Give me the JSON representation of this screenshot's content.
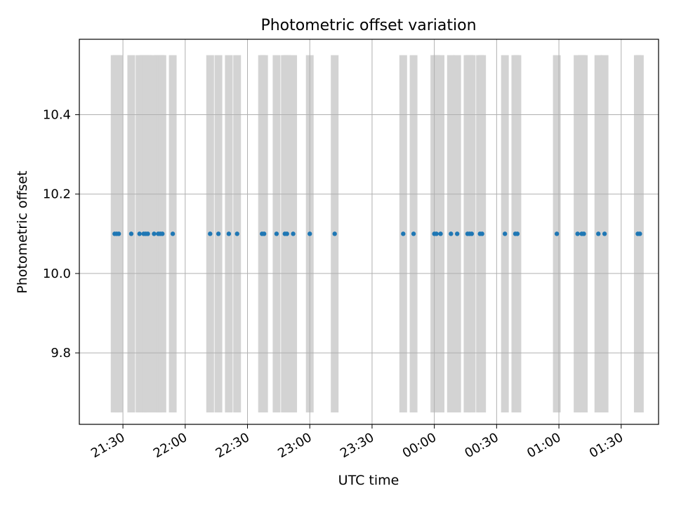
{
  "chart_data": {
    "type": "scatter",
    "title": "Photometric offset variation",
    "xlabel": "UTC time",
    "ylabel": "Photometric offset",
    "x_axis": {
      "kind": "time",
      "min": "21:09",
      "max": "01:48",
      "ticks": [
        "21:30",
        "22:00",
        "22:30",
        "23:00",
        "23:30",
        "00:00",
        "00:30",
        "01:00",
        "01:30"
      ]
    },
    "y_axis": {
      "min": 9.62,
      "max": 10.59,
      "ticks": [
        "9.8",
        "10.0",
        "10.2",
        "10.4"
      ]
    },
    "grid": true,
    "point_color": "#1f77b4",
    "band_color": "#d3d3d3",
    "band_range": [
      9.65,
      10.55
    ],
    "times": [
      "21:26",
      "21:27",
      "21:28",
      "21:34",
      "21:38",
      "21:40",
      "21:41",
      "21:42",
      "21:45",
      "21:47",
      "21:48",
      "21:49",
      "21:54",
      "22:12",
      "22:16",
      "22:21",
      "22:25",
      "22:37",
      "22:38",
      "22:44",
      "22:48",
      "22:49",
      "22:52",
      "23:00",
      "23:12",
      "23:45",
      "23:50",
      "00:00",
      "00:01",
      "00:03",
      "00:08",
      "00:11",
      "00:16",
      "00:17",
      "00:18",
      "00:22",
      "00:23",
      "00:34",
      "00:39",
      "00:40",
      "00:59",
      "01:09",
      "01:11",
      "01:12",
      "01:19",
      "01:22",
      "01:38",
      "01:39"
    ],
    "offset_value": 10.1
  }
}
